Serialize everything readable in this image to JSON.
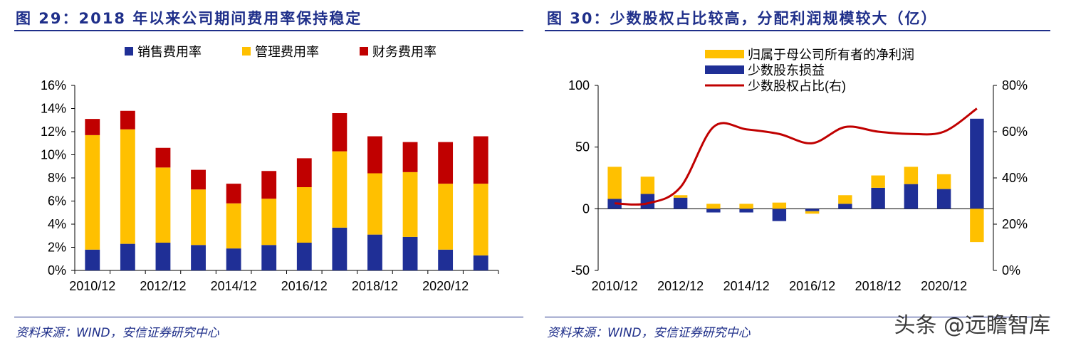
{
  "left": {
    "title": "图 29：2018 年以来公司期间费用率保持稳定",
    "source": "资料来源：WIND，安信证券研究中心"
  },
  "right": {
    "title": "图 30：少数股权占比较高，分配利润规模较大（亿）",
    "source": "资料来源：WIND，安信证券研究中心"
  },
  "watermark": "头条 @远瞻智库",
  "chart_data": [
    {
      "type": "bar",
      "stacked": true,
      "title": "",
      "categories": [
        "2010/12",
        "2011/12",
        "2012/12",
        "2013/12",
        "2014/12",
        "2015/12",
        "2016/12",
        "2017/12",
        "2018/12",
        "2019/12",
        "2020/12",
        "2021/12"
      ],
      "x_tick_labels": [
        "2010/12",
        "2012/12",
        "2014/12",
        "2016/12",
        "2018/12",
        "2020/12"
      ],
      "y_tick_labels": [
        "0%",
        "2%",
        "4%",
        "6%",
        "8%",
        "10%",
        "12%",
        "14%",
        "16%"
      ],
      "ylim": [
        0,
        16
      ],
      "legend_position": "top",
      "series": [
        {
          "name": "销售费用率",
          "color": "#1f2f96",
          "values": [
            1.8,
            2.3,
            2.4,
            2.2,
            1.9,
            2.2,
            2.4,
            3.7,
            3.1,
            2.9,
            1.8,
            1.3
          ]
        },
        {
          "name": "管理费用率",
          "color": "#ffc000",
          "values": [
            9.9,
            9.9,
            6.5,
            4.8,
            3.9,
            4.0,
            4.8,
            6.6,
            5.3,
            5.6,
            5.7,
            6.2
          ]
        },
        {
          "name": "财务费用率",
          "color": "#c00000",
          "values": [
            1.4,
            1.6,
            1.7,
            1.7,
            1.7,
            2.4,
            2.5,
            3.3,
            3.2,
            2.6,
            3.6,
            4.1
          ]
        }
      ]
    },
    {
      "type": "bar",
      "stacked": true,
      "title": "",
      "categories": [
        "2010/12",
        "2011/12",
        "2012/12",
        "2013/12",
        "2014/12",
        "2015/12",
        "2016/12",
        "2017/12",
        "2018/12",
        "2019/12",
        "2020/12",
        "2021/12"
      ],
      "x_tick_labels": [
        "2010/12",
        "2012/12",
        "2014/12",
        "2016/12",
        "2018/12",
        "2020/12"
      ],
      "y_tick_labels": [
        "-50",
        "0",
        "50",
        "100"
      ],
      "y2_tick_labels": [
        "0%",
        "20%",
        "40%",
        "60%",
        "80%"
      ],
      "ylim": [
        -50,
        100
      ],
      "y2lim": [
        0,
        80
      ],
      "legend_position": "top-left",
      "series": [
        {
          "name": "归属于母公司所有者的净利润",
          "color": "#ffc000",
          "type": "bar",
          "values": [
            26,
            14,
            2,
            4,
            4,
            5,
            -2,
            7,
            10,
            14,
            12,
            -27
          ]
        },
        {
          "name": "少数股东损益",
          "color": "#1f2f96",
          "type": "bar",
          "values": [
            8,
            12,
            9,
            -3,
            -3,
            -10,
            -2,
            4,
            17,
            20,
            16,
            73
          ]
        },
        {
          "name": "少数股权占比(右)",
          "color": "#c00000",
          "type": "line",
          "axis": "right",
          "values": [
            29,
            29,
            36,
            62,
            61,
            59,
            55,
            62,
            60,
            59,
            60,
            70
          ]
        }
      ]
    }
  ]
}
